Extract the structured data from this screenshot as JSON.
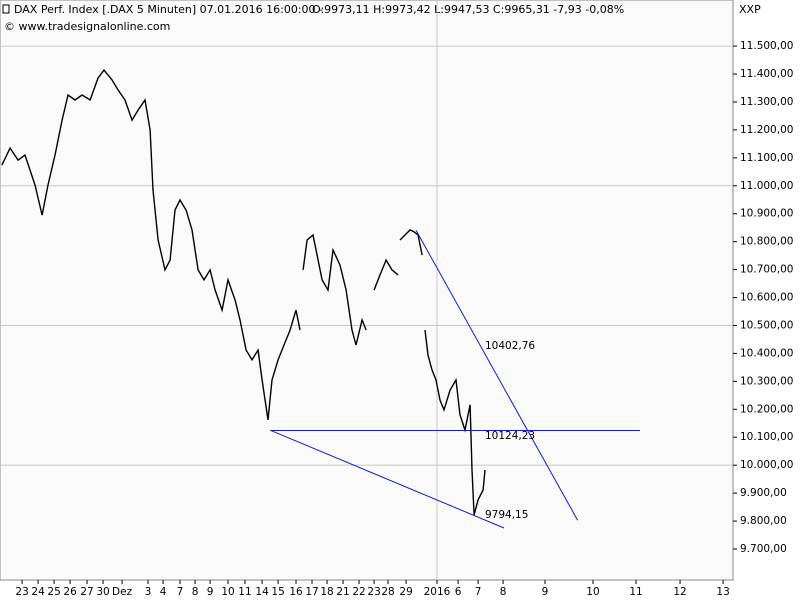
{
  "chart_data": {
    "type": "line",
    "title": "DAX Perf. Index [.DAX  5 Minuten] 07.01.2016 16:00:00 - ",
    "quote": "O:9973,11 H:9973,42 L:9947,53 C:9965,31 -7,93 -0,08%",
    "quote_color": "#e00000",
    "source": "© www.tradesignalonline.com",
    "exchange": "XXP",
    "xlim": [
      -0.3,
      45.51
    ],
    "ylim": [
      9589,
      11665
    ],
    "yticks": [
      {
        "value": 9700,
        "label": "9.700,00"
      },
      {
        "value": 9800,
        "label": "9.800,00"
      },
      {
        "value": 9900,
        "label": "9.900,00"
      },
      {
        "value": 10000,
        "label": "10.000,00"
      },
      {
        "value": 10100,
        "label": "10.100,00"
      },
      {
        "value": 10200,
        "label": "10.200,00"
      },
      {
        "value": 10300,
        "label": "10.300,00"
      },
      {
        "value": 10400,
        "label": "10.400,00"
      },
      {
        "value": 10500,
        "label": "10.500,00"
      },
      {
        "value": 10600,
        "label": "10.600,00"
      },
      {
        "value": 10700,
        "label": "10.700,00"
      },
      {
        "value": 10800,
        "label": "10.800,00"
      },
      {
        "value": 10900,
        "label": "10.900,00"
      },
      {
        "value": 11000,
        "label": "11.000,00"
      },
      {
        "value": 11100,
        "label": "11.100,00"
      },
      {
        "value": 11200,
        "label": "11.200,00"
      },
      {
        "value": 11300,
        "label": "11.300,00"
      },
      {
        "value": 11400,
        "label": "11.400,00"
      },
      {
        "value": 11500,
        "label": "11.500,00"
      }
    ],
    "xticks": [
      {
        "value": 1.08,
        "label": "23"
      },
      {
        "value": 2.08,
        "label": "24"
      },
      {
        "value": 3.08,
        "label": "25"
      },
      {
        "value": 4.08,
        "label": "26"
      },
      {
        "value": 5.14,
        "label": "27"
      },
      {
        "value": 6.14,
        "label": "30"
      },
      {
        "value": 7.33,
        "label": "Dez"
      },
      {
        "value": 8.95,
        "label": "3"
      },
      {
        "value": 9.89,
        "label": "4"
      },
      {
        "value": 10.95,
        "label": "7"
      },
      {
        "value": 11.89,
        "label": "8"
      },
      {
        "value": 12.83,
        "label": "9"
      },
      {
        "value": 13.95,
        "label": "10"
      },
      {
        "value": 15.01,
        "label": "11"
      },
      {
        "value": 16.08,
        "label": "14"
      },
      {
        "value": 17.08,
        "label": "15"
      },
      {
        "value": 18.2,
        "label": "16"
      },
      {
        "value": 19.2,
        "label": "17"
      },
      {
        "value": 20.14,
        "label": "18"
      },
      {
        "value": 21.14,
        "label": "21"
      },
      {
        "value": 22.14,
        "label": "22"
      },
      {
        "value": 23.08,
        "label": "23"
      },
      {
        "value": 23.95,
        "label": "28"
      },
      {
        "value": 25.08,
        "label": "29"
      },
      {
        "value": 27.01,
        "label": "2016"
      },
      {
        "value": 28.33,
        "label": "6"
      },
      {
        "value": 29.58,
        "label": "7"
      },
      {
        "value": 31.14,
        "label": "8"
      },
      {
        "value": 33.76,
        "label": "9"
      },
      {
        "value": 36.76,
        "label": "10"
      },
      {
        "value": 39.45,
        "label": "11"
      },
      {
        "value": 42.2,
        "label": "12"
      },
      {
        "value": 44.89,
        "label": "13"
      }
    ],
    "series": [
      {
        "color": "#000000",
        "x": [
          -0.18,
          0.33,
          0.83,
          1.26,
          1.89,
          2.33,
          2.7,
          3.14,
          3.58,
          3.95,
          4.39,
          4.83,
          5.33,
          5.83,
          6.2,
          6.7,
          7.08,
          7.51,
          7.95,
          8.33,
          8.76,
          9.08,
          9.26,
          9.58,
          10.01,
          10.33,
          10.64,
          10.95,
          11.33,
          11.7,
          12.08,
          12.45,
          12.83,
          13.14,
          13.58,
          13.95,
          14.39,
          14.7,
          15.08,
          15.45,
          15.83,
          16.08,
          16.45,
          16.7,
          17.08,
          17.45,
          17.83,
          18.2,
          18.45,
          18.5,
          18.64,
          18.89,
          19.26,
          19.58,
          19.83,
          20.2,
          20.51,
          20.95,
          21.33,
          21.7,
          21.95,
          22.33,
          22.58,
          22.7,
          23.08,
          23.45,
          23.83,
          24.2,
          24.58,
          24.6,
          24.7,
          25.01,
          25.33,
          25.58,
          25.83,
          26.08,
          26.1,
          26.26,
          26.45,
          26.7,
          26.95,
          27.2,
          27.45,
          27.83,
          28.2,
          28.45,
          28.76,
          29.08,
          29.2,
          29.33,
          29.58,
          29.89,
          30.01
        ],
        "values": [
          11074,
          11135,
          11092,
          11110,
          11003,
          10895,
          11003,
          11110,
          11235,
          11325,
          11307,
          11325,
          11307,
          11386,
          11414,
          11379,
          11343,
          11307,
          11235,
          11271,
          11307,
          11200,
          10985,
          10806,
          10699,
          10734,
          10913,
          10949,
          10913,
          10842,
          10699,
          10663,
          10699,
          10627,
          10555,
          10663,
          10591,
          10520,
          10412,
          10377,
          10412,
          10305,
          10162,
          10305,
          10377,
          10430,
          10484,
          10555,
          10484,
          null,
          10699,
          10806,
          10824,
          10734,
          10663,
          10627,
          10770,
          10716,
          10627,
          10484,
          10430,
          10520,
          10484,
          null,
          10627,
          10681,
          10734,
          10699,
          10681,
          null,
          10806,
          10824,
          10842,
          10835,
          10824,
          10752,
          null,
          10484,
          10394,
          10341,
          10305,
          10233,
          10198,
          10269,
          10305,
          10180,
          10126,
          10216,
          9983,
          9822,
          9876,
          9911,
          9983
        ]
      }
    ],
    "trendlines": [
      {
        "color": "#1a1acc",
        "x": [
          16.6,
          31.2
        ],
        "values": [
          10125,
          9775
        ]
      },
      {
        "color": "#1a1acc",
        "x": [
          16.6,
          39.7
        ],
        "values": [
          10124.23,
          10124.23
        ]
      },
      {
        "color": "#1a1acc",
        "x": [
          25.7,
          35.8
        ],
        "values": [
          10841,
          9803
        ]
      }
    ],
    "annotations": [
      {
        "text": "10402,76"
      },
      {
        "text": "10124,23"
      },
      {
        "text": "9794,15"
      }
    ],
    "grid": true
  }
}
